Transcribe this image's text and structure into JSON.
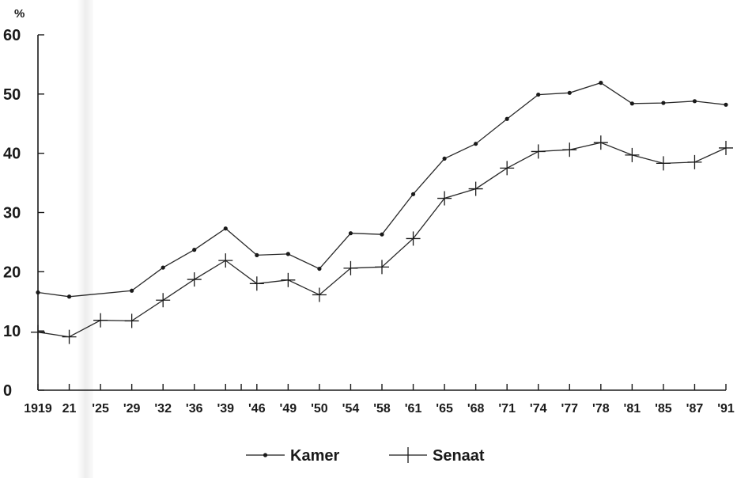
{
  "chart_data": {
    "type": "line",
    "unit_label": "%",
    "ylim": [
      0,
      60
    ],
    "y_ticks": [
      "0",
      "10",
      "20",
      "30",
      "40",
      "50",
      "60"
    ],
    "x_ticks": [
      "1919",
      "21",
      "'25",
      "'29",
      "'32",
      "'36",
      "'39",
      "'46",
      "'49",
      "'50",
      "'54",
      "'58",
      "'61",
      "'65",
      "'68",
      "'71",
      "'74",
      "'77",
      "'78",
      "'81",
      "'85",
      "'87",
      "'91"
    ],
    "x_years": [
      1919,
      1921,
      1925,
      1929,
      1932,
      1936,
      1939,
      1946,
      1949,
      1950,
      1954,
      1958,
      1961,
      1965,
      1968,
      1971,
      1974,
      1977,
      1978,
      1981,
      1985,
      1987,
      1991
    ],
    "series": [
      {
        "name": "Kamer",
        "marker": "dot",
        "points": [
          [
            1919,
            16.5
          ],
          [
            1921,
            15.8
          ],
          [
            1929,
            16.8
          ],
          [
            1932,
            20.7
          ],
          [
            1936,
            23.7
          ],
          [
            1939,
            27.3
          ],
          [
            1946,
            22.8
          ],
          [
            1949,
            23.0
          ],
          [
            1950,
            20.5
          ],
          [
            1954,
            26.5
          ],
          [
            1958,
            26.3
          ],
          [
            1961,
            33.1
          ],
          [
            1965,
            39.1
          ],
          [
            1968,
            41.6
          ],
          [
            1971,
            45.8
          ],
          [
            1974,
            49.9
          ],
          [
            1977,
            50.2
          ],
          [
            1978,
            51.9
          ],
          [
            1981,
            48.4
          ],
          [
            1985,
            48.5
          ],
          [
            1987,
            48.8
          ],
          [
            1991,
            48.2
          ]
        ]
      },
      {
        "name": "Senaat",
        "marker": "plus",
        "points": [
          [
            1919,
            9.8
          ],
          [
            1921,
            9.0
          ],
          [
            1925,
            11.8
          ],
          [
            1929,
            11.7
          ],
          [
            1932,
            15.2
          ],
          [
            1936,
            18.7
          ],
          [
            1939,
            21.9
          ],
          [
            1946,
            18.0
          ],
          [
            1949,
            18.6
          ],
          [
            1950,
            16.1
          ],
          [
            1954,
            20.6
          ],
          [
            1958,
            20.8
          ],
          [
            1961,
            25.6
          ],
          [
            1965,
            32.4
          ],
          [
            1968,
            34.0
          ],
          [
            1971,
            37.5
          ],
          [
            1974,
            40.3
          ],
          [
            1977,
            40.6
          ],
          [
            1978,
            41.8
          ],
          [
            1981,
            39.7
          ],
          [
            1985,
            38.3
          ],
          [
            1987,
            38.5
          ],
          [
            1991,
            40.9
          ]
        ]
      }
    ],
    "legend_position": "bottom-center",
    "grid": false
  }
}
